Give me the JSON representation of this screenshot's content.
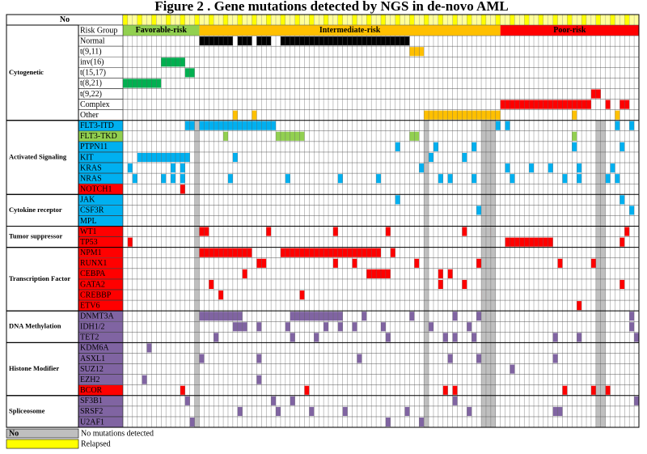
{
  "title": "Figure 2 . Gene mutations detected by NGS  in de-novo AML",
  "header_label": "No",
  "risk_label": "Risk Group",
  "columns": 108,
  "risk_groups": [
    {
      "label": "Favorable-risk",
      "start": 0,
      "end": 15,
      "color": "#92d050"
    },
    {
      "label": "Intermediate-risk",
      "start": 16,
      "end": 78,
      "color": "#ffc000"
    },
    {
      "label": "Poor-risk",
      "start": 79,
      "end": 107,
      "color": "#ff0000"
    }
  ],
  "no_mutation_columns": [
    15,
    63,
    75,
    76,
    77,
    99,
    100
  ],
  "groups": [
    {
      "label": "Cytogenetic",
      "first": 0,
      "last": 8
    },
    {
      "label": "Activated Signaling",
      "first": 9,
      "last": 15
    },
    {
      "label": "Cytokine receptor",
      "first": 16,
      "last": 18
    },
    {
      "label": "Tumor suppressor",
      "first": 19,
      "last": 20
    },
    {
      "label": "Transcription Factor",
      "first": 21,
      "last": 26
    },
    {
      "label": "DNA Methylation",
      "first": 27,
      "last": 29
    },
    {
      "label": "Histone Modifier",
      "first": 30,
      "last": 34
    },
    {
      "label": "Spliceosome",
      "first": 35,
      "last": 37
    }
  ],
  "rows": [
    {
      "label": "Risk Group",
      "color": "#ffffff",
      "cells": []
    },
    {
      "label": "Normal",
      "color": "#000000",
      "cells": [
        16,
        17,
        18,
        19,
        20,
        21,
        22,
        24,
        25,
        26,
        28,
        29,
        30,
        33,
        34,
        35,
        36,
        37,
        38,
        39,
        40,
        41,
        42,
        43,
        44,
        45,
        46,
        47,
        48,
        49,
        50,
        51,
        52,
        53,
        54,
        55,
        56,
        57,
        58,
        59
      ]
    },
    {
      "label": "t(9,11)",
      "color": "#ffc000",
      "cells": [
        60,
        61,
        62
      ]
    },
    {
      "label": "inv(16)",
      "color": "#00b050",
      "cells": [
        8,
        9,
        10,
        11,
        12
      ]
    },
    {
      "label": "t(15,17)",
      "color": "#00b050",
      "cells": [
        13,
        14
      ]
    },
    {
      "label": "t(8,21)",
      "color": "#00b050",
      "cells": [
        0,
        1,
        2,
        3,
        4,
        5,
        6,
        7
      ]
    },
    {
      "label": "t(9,22)",
      "color": "#ff0000",
      "cells": [
        98,
        99
      ]
    },
    {
      "label": "Complex",
      "color": "#ff0000",
      "cells": [
        79,
        80,
        81,
        82,
        83,
        84,
        85,
        86,
        87,
        88,
        89,
        90,
        91,
        92,
        93,
        94,
        95,
        96,
        97,
        101,
        104,
        105
      ]
    },
    {
      "label": "Other",
      "color": "#ffc000",
      "cells": [
        23,
        27,
        63,
        64,
        65,
        66,
        67,
        68,
        69,
        70,
        71,
        72,
        73,
        74,
        75,
        76,
        77,
        78,
        94,
        103
      ]
    },
    {
      "label": "FLT3-ITD",
      "color": "#00b0f0",
      "cells": [
        13,
        14,
        16,
        17,
        18,
        19,
        20,
        21,
        22,
        23,
        24,
        25,
        26,
        27,
        28,
        29,
        30,
        31,
        78,
        80,
        103,
        106
      ]
    },
    {
      "label": "FLT3-TKD",
      "color": "#92d050",
      "cells": [
        21,
        32,
        33,
        34,
        35,
        36,
        37,
        60,
        61,
        94
      ]
    },
    {
      "label": "PTPN11",
      "color": "#00b0f0",
      "cells": [
        57,
        65,
        73,
        94,
        104
      ]
    },
    {
      "label": "KIT",
      "color": "#00b0f0",
      "cells": [
        3,
        4,
        5,
        6,
        7,
        8,
        9,
        10,
        11,
        12,
        13,
        23,
        64,
        71
      ]
    },
    {
      "label": "KRAS",
      "color": "#00b0f0",
      "cells": [
        1,
        10,
        12,
        62,
        80,
        85,
        89,
        95,
        102
      ]
    },
    {
      "label": "NRAS",
      "color": "#00b0f0",
      "cells": [
        2,
        8,
        10,
        12,
        22,
        34,
        45,
        53,
        66,
        68,
        73,
        76,
        81,
        92,
        95,
        101,
        103
      ]
    },
    {
      "label": "NOTCH1",
      "color": "#ff0000",
      "cells": [
        12
      ]
    },
    {
      "label": "JAK",
      "color": "#00b0f0",
      "cells": [
        57,
        104
      ]
    },
    {
      "label": "CSF3R",
      "color": "#00b0f0",
      "cells": [
        74,
        106
      ]
    },
    {
      "label": "MPL",
      "color": "#00b0f0",
      "cells": []
    },
    {
      "label": "WT1",
      "color": "#ff0000",
      "cells": [
        16,
        17,
        30,
        44,
        55,
        71,
        76,
        105
      ]
    },
    {
      "label": "TP53",
      "color": "#ff0000",
      "cells": [
        1,
        80,
        81,
        82,
        83,
        84,
        85,
        86,
        87,
        88,
        89,
        104
      ]
    },
    {
      "label": "NPM1",
      "color": "#ff0000",
      "cells": [
        16,
        17,
        18,
        19,
        20,
        21,
        22,
        23,
        24,
        25,
        26,
        33,
        34,
        35,
        36,
        37,
        38,
        39,
        40,
        41,
        42,
        43,
        44,
        45,
        46,
        47,
        48,
        49,
        50,
        51,
        52,
        53,
        56
      ]
    },
    {
      "label": "RUNX1",
      "color": "#ff0000",
      "cells": [
        28,
        29,
        44,
        48,
        61,
        74,
        75,
        91,
        98
      ]
    },
    {
      "label": "CEBPA",
      "color": "#ff0000",
      "cells": [
        25,
        51,
        52,
        53,
        54,
        55,
        66,
        68
      ]
    },
    {
      "label": "GATA2",
      "color": "#ff0000",
      "cells": [
        18,
        66,
        71,
        104
      ]
    },
    {
      "label": "CREBBP",
      "color": "#ff0000",
      "cells": [
        20,
        37,
        75
      ]
    },
    {
      "label": "ETV6",
      "color": "#ff0000",
      "cells": [
        95
      ]
    },
    {
      "label": "DNMT3A",
      "color": "#8064a2",
      "cells": [
        16,
        17,
        18,
        19,
        20,
        21,
        22,
        23,
        24,
        35,
        36,
        37,
        38,
        39,
        40,
        41,
        42,
        43,
        44,
        45,
        50,
        60,
        69,
        74,
        106
      ]
    },
    {
      "label": "IDH1/2",
      "color": "#8064a2",
      "cells": [
        23,
        24,
        25,
        28,
        34,
        42,
        45,
        48,
        54,
        64,
        72,
        77,
        106
      ]
    },
    {
      "label": "TET2",
      "color": "#8064a2",
      "cells": [
        19,
        35,
        40,
        55,
        67,
        69,
        73,
        90,
        95,
        107
      ]
    },
    {
      "label": "KDM6A",
      "color": "#8064a2",
      "cells": [
        5
      ]
    },
    {
      "label": "ASXL1",
      "color": "#8064a2",
      "cells": [
        16,
        28,
        49,
        68,
        74,
        90
      ]
    },
    {
      "label": "SUZ12",
      "color": "#8064a2",
      "cells": [
        81
      ]
    },
    {
      "label": "EZH2",
      "color": "#8064a2",
      "cells": [
        4,
        28
      ]
    },
    {
      "label": "BCOR",
      "color": "#ff0000",
      "cells": [
        12,
        38,
        67,
        69,
        92,
        98,
        101
      ]
    },
    {
      "label": "SF3B1",
      "color": "#8064a2",
      "cells": [
        13,
        31,
        35,
        69,
        77,
        107
      ]
    },
    {
      "label": "SRSF2",
      "color": "#8064a2",
      "cells": [
        24,
        32,
        39,
        46,
        59,
        72,
        77,
        90,
        91
      ]
    },
    {
      "label": "U2AF1",
      "color": "#8064a2",
      "cells": [
        14,
        55,
        62
      ]
    }
  ],
  "legend": [
    {
      "label": "No",
      "text": "No mutations detected",
      "color": "#bfbfbf"
    },
    {
      "text": "Relapsed",
      "color": "#ffff00"
    }
  ]
}
